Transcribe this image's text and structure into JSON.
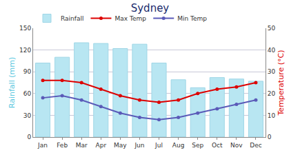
{
  "chart_data": {
    "type": "bar",
    "title": "Sydney",
    "categories": [
      "Jan",
      "Feb",
      "Mar",
      "Apr",
      "May",
      "Jun",
      "Jul",
      "Aug",
      "Sep",
      "Oct",
      "Nov",
      "Dec"
    ],
    "series": [
      {
        "name": "Rainfall",
        "type": "bar",
        "color": "#b8e6f2",
        "values": [
          102,
          110,
          130,
          129,
          122,
          128,
          102,
          79,
          68,
          82,
          80,
          77
        ]
      },
      {
        "name": "Max Temp",
        "type": "line",
        "axis": "y2",
        "color": "#dd0000",
        "marker": "circle",
        "values": [
          26,
          26,
          25,
          22,
          19,
          17,
          16,
          17,
          20,
          22,
          23,
          25
        ]
      },
      {
        "name": "Min Temp",
        "type": "line",
        "axis": "y2",
        "color": "#5a5ab8",
        "marker": "circle",
        "values": [
          18,
          19,
          17,
          14,
          11,
          9,
          8,
          9,
          11,
          13,
          15,
          17
        ]
      }
    ],
    "y_label": "Rainfall (mm)",
    "y2_label": "Temperature (°C)",
    "ylim": [
      0,
      150
    ],
    "yticks": [
      0,
      30,
      60,
      90,
      120,
      150
    ],
    "y2lim": [
      0,
      50
    ],
    "y2ticks": [
      0,
      10,
      20,
      30,
      40,
      50
    ],
    "grid": true,
    "legend": "top"
  }
}
